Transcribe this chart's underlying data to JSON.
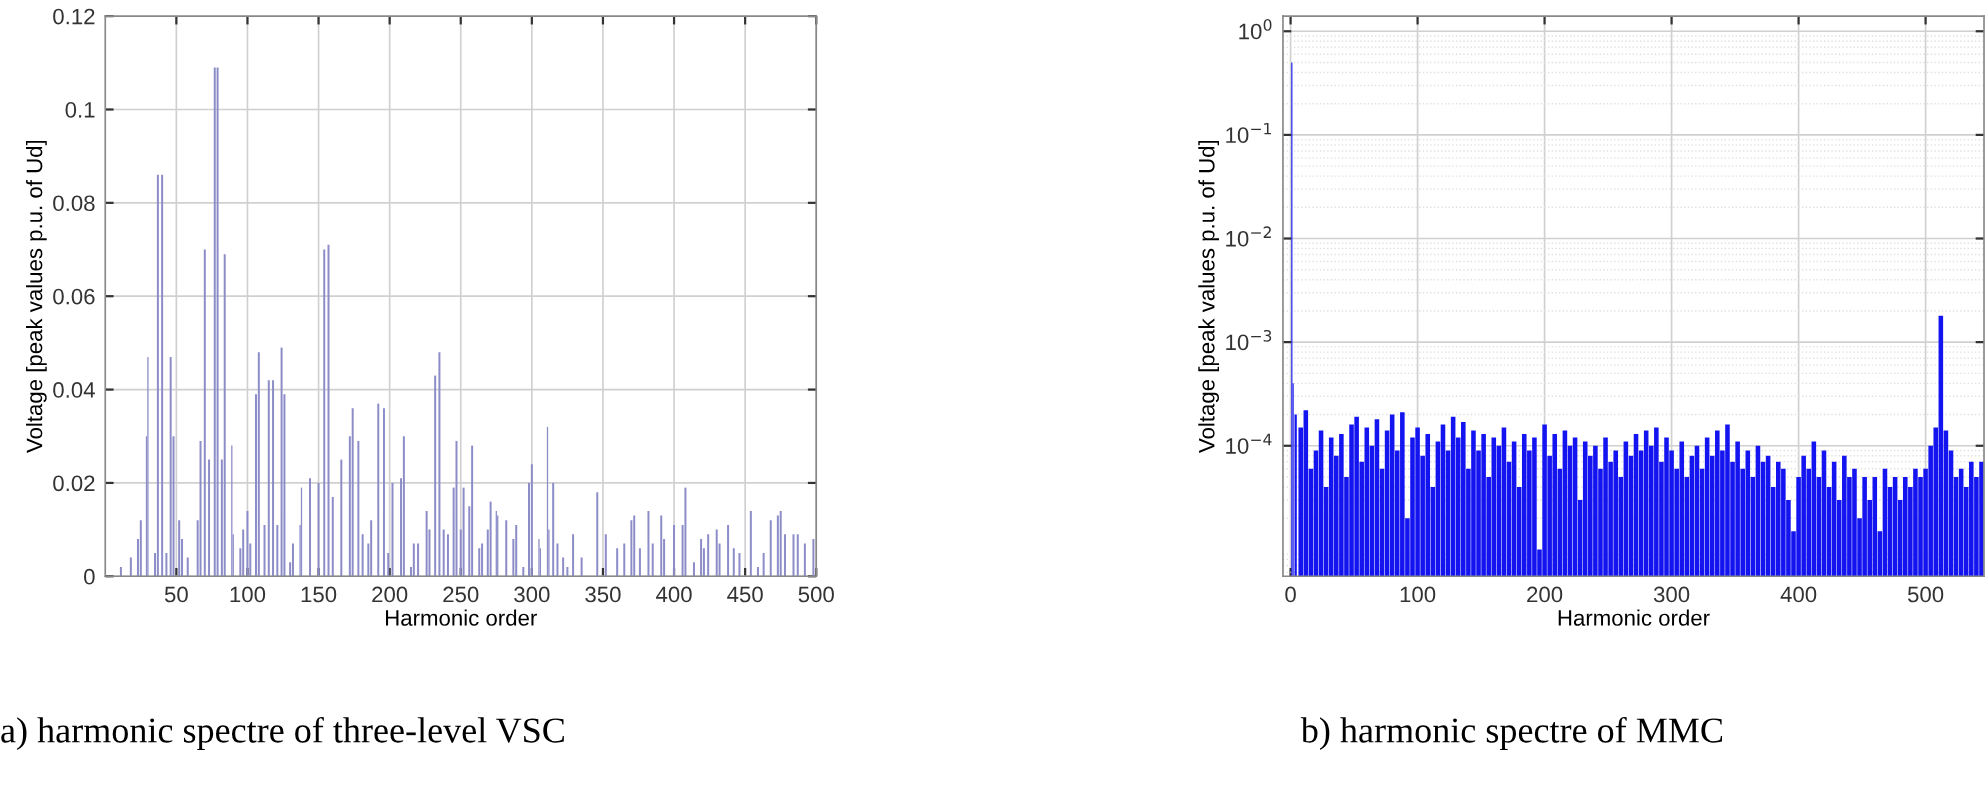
{
  "chart_data": [
    {
      "type": "bar",
      "xlabel": "Harmonic order",
      "ylabel": "Voltage [peak values p.u. of Ud]",
      "xlim": [
        0,
        500
      ],
      "ylim": [
        0,
        0.12
      ],
      "xticks": [
        50,
        100,
        150,
        200,
        250,
        300,
        350,
        400,
        450,
        500
      ],
      "yticks": [
        0,
        0.02,
        0.04,
        0.06,
        0.08,
        0.1,
        0.12
      ],
      "grid": true,
      "annotations": [
        "a) harmonic spectre of three-level VSC"
      ],
      "series": [
        {
          "color": "#8c8cc8",
          "x": [
            11,
            18,
            23,
            25,
            29,
            30,
            35,
            37,
            40,
            43,
            46,
            48,
            52,
            54,
            58,
            65,
            67,
            70,
            73,
            77,
            79,
            82,
            84,
            89,
            90,
            95,
            97,
            100,
            102,
            106,
            108,
            112,
            115,
            118,
            121,
            124,
            126,
            130,
            132,
            137,
            138,
            144,
            150,
            154,
            157,
            160,
            166,
            172,
            174,
            178,
            181,
            185,
            187,
            192,
            196,
            199,
            202,
            208,
            210,
            215,
            217,
            220,
            226,
            228,
            232,
            235,
            238,
            241,
            245,
            247,
            250,
            252,
            256,
            258,
            263,
            265,
            269,
            271,
            275,
            276,
            282,
            287,
            289,
            294,
            298,
            300,
            305,
            306,
            311,
            312,
            315,
            318,
            322,
            325,
            329,
            335,
            346,
            352,
            360,
            365,
            370,
            372,
            376,
            382,
            385,
            391,
            393,
            400,
            406,
            408,
            414,
            419,
            421,
            424,
            430,
            432,
            438,
            442,
            446,
            454,
            459,
            463,
            468,
            473,
            475,
            478,
            484,
            487,
            492,
            498
          ],
          "values": [
            0.002,
            0.004,
            0.008,
            0.012,
            0.03,
            0.047,
            0.005,
            0.086,
            0.086,
            0.005,
            0.047,
            0.03,
            0.012,
            0.008,
            0.004,
            0.012,
            0.029,
            0.07,
            0.025,
            0.109,
            0.109,
            0.025,
            0.069,
            0.028,
            0.009,
            0.006,
            0.01,
            0.014,
            0.007,
            0.039,
            0.048,
            0.011,
            0.042,
            0.042,
            0.011,
            0.049,
            0.039,
            0.003,
            0.007,
            0.011,
            0.019,
            0.021,
            0.02,
            0.07,
            0.071,
            0.017,
            0.025,
            0.03,
            0.036,
            0.029,
            0.009,
            0.007,
            0.012,
            0.037,
            0.036,
            0.005,
            0.02,
            0.021,
            0.03,
            0.002,
            0.007,
            0.007,
            0.014,
            0.01,
            0.043,
            0.048,
            0.01,
            0.009,
            0.019,
            0.029,
            0.01,
            0.019,
            0.015,
            0.028,
            0.006,
            0.007,
            0.01,
            0.016,
            0.014,
            0.013,
            0.012,
            0.008,
            0.011,
            0.002,
            0.02,
            0.024,
            0.008,
            0.006,
            0.032,
            0.01,
            0.02,
            0.007,
            0.004,
            0.002,
            0.009,
            0.004,
            0.018,
            0.009,
            0.006,
            0.007,
            0.012,
            0.013,
            0.006,
            0.014,
            0.007,
            0.013,
            0.008,
            0.011,
            0.011,
            0.019,
            0.003,
            0.008,
            0.006,
            0.009,
            0.01,
            0.007,
            0.011,
            0.006,
            0.005,
            0.014,
            0.002,
            0.005,
            0.012,
            0.013,
            0.014,
            0.009,
            0.009,
            0.009,
            0.007,
            0.008
          ]
        }
      ]
    },
    {
      "type": "bar",
      "xlabel": "Harmonic order",
      "ylabel": "Voltage [peak values p.u. of Ud]",
      "log": "y",
      "xlim": [
        -6,
        546
      ],
      "ylim": [
        5.5e-06,
        1.4
      ],
      "xticks": [
        0,
        100,
        200,
        300,
        400,
        500
      ],
      "yticks": [
        {
          "value": 1,
          "label": "10$^{0}$"
        },
        {
          "value": 0.1,
          "label": "10$^{−1}$"
        },
        {
          "value": 0.01,
          "label": "10$^{−2}$"
        },
        {
          "value": 0.001,
          "label": "10$^{−3}$"
        },
        {
          "value": 0.0001,
          "label": "10$^{−4}$"
        }
      ],
      "grid": true,
      "annotations": [
        "b) harmonic spectre of MMC"
      ],
      "series": [
        {
          "color": "#1414f0",
          "x": [
            1,
            2,
            4,
            8,
            12,
            16,
            20,
            24,
            28,
            32,
            36,
            40,
            44,
            48,
            52,
            56,
            60,
            64,
            68,
            72,
            76,
            80,
            84,
            88,
            92,
            96,
            100,
            104,
            108,
            112,
            116,
            120,
            124,
            128,
            132,
            136,
            140,
            144,
            148,
            152,
            156,
            160,
            164,
            168,
            172,
            176,
            180,
            184,
            188,
            192,
            196,
            200,
            204,
            208,
            212,
            216,
            220,
            224,
            228,
            232,
            236,
            240,
            244,
            248,
            252,
            256,
            260,
            264,
            268,
            272,
            276,
            280,
            284,
            288,
            292,
            296,
            300,
            304,
            308,
            312,
            316,
            320,
            324,
            328,
            332,
            336,
            340,
            344,
            348,
            352,
            356,
            360,
            364,
            368,
            372,
            376,
            380,
            384,
            388,
            392,
            396,
            400,
            404,
            408,
            412,
            416,
            420,
            424,
            428,
            432,
            436,
            440,
            444,
            448,
            452,
            456,
            460,
            464,
            468,
            472,
            476,
            480,
            484,
            488,
            492,
            496,
            500,
            504,
            508,
            512,
            516,
            520,
            524,
            528,
            532,
            536,
            540,
            544
          ],
          "values": [
            0.5,
            0.0004,
            0.0002,
            0.00015,
            0.00022,
            6e-05,
            9e-05,
            0.00014,
            4e-05,
            0.00012,
            8e-05,
            0.00013,
            5e-05,
            0.00016,
            0.00019,
            7e-05,
            0.00015,
            0.0001,
            0.00018,
            6e-05,
            0.00014,
            0.0002,
            9e-05,
            0.00021,
            2e-05,
            0.00012,
            0.00015,
            8e-05,
            0.00013,
            4e-05,
            0.00011,
            0.00016,
            9e-05,
            0.00019,
            0.00012,
            0.00017,
            6e-05,
            0.00014,
            9e-05,
            0.00013,
            5e-05,
            0.00012,
            0.0001,
            0.00015,
            7e-05,
            0.00011,
            4e-05,
            0.00013,
            9e-05,
            0.00012,
            1e-05,
            0.00016,
            8e-05,
            0.00013,
            6e-05,
            0.00014,
            0.0001,
            0.00012,
            3e-05,
            0.00011,
            8e-05,
            0.0001,
            6e-05,
            0.00012,
            7e-05,
            9e-05,
            5e-05,
            0.00011,
            8e-05,
            0.00013,
            9e-05,
            0.00014,
            0.0001,
            0.00015,
            7e-05,
            0.00012,
            9e-05,
            6e-05,
            0.00011,
            5e-05,
            8e-05,
            0.0001,
            6e-05,
            0.00012,
            8e-05,
            0.00014,
            9e-05,
            0.00016,
            7e-05,
            0.00011,
            6e-05,
            9e-05,
            5e-05,
            0.0001,
            7e-05,
            8e-05,
            4e-05,
            7e-05,
            6e-05,
            3e-05,
            1.5e-05,
            5e-05,
            8e-05,
            6e-05,
            0.00011,
            5e-05,
            9e-05,
            4e-05,
            7e-05,
            3e-05,
            8e-05,
            5e-05,
            6e-05,
            2e-05,
            5e-05,
            3e-05,
            5e-05,
            1.5e-05,
            6e-05,
            4e-05,
            5e-05,
            3e-05,
            5e-05,
            4e-05,
            6e-05,
            5e-05,
            6e-05,
            0.0001,
            0.00015,
            0.0018,
            0.00014,
            9e-05,
            5e-05,
            6e-05,
            4e-05,
            7e-05,
            5e-05,
            7e-05
          ]
        }
      ]
    }
  ]
}
